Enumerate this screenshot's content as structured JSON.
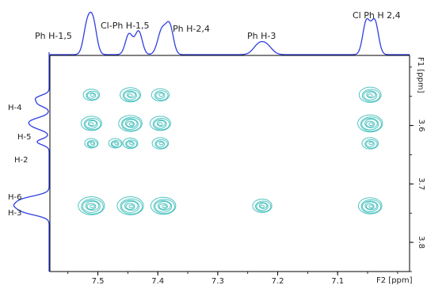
{
  "chart_data": {
    "type": "2D NMR contour plot (COSY) with projected 1D spectra",
    "x_axis": {
      "label": "F2 [ppm]",
      "range_ppm": [
        7.58,
        6.98
      ],
      "reversed": true,
      "tick_labels": [
        "7.5",
        "7.4",
        "7.3",
        "7.2",
        "7.1"
      ],
      "tick_values": [
        7.5,
        7.4,
        7.3,
        7.2,
        7.1
      ]
    },
    "y_axis": {
      "label": "F1 [ppm]",
      "range_ppm": [
        3.48,
        3.85
      ],
      "reversed": true,
      "tick_labels": [
        "3.6",
        "3.7",
        "3.8"
      ],
      "tick_values": [
        3.6,
        3.7,
        3.8
      ]
    },
    "top_projection_peaks": [
      {
        "label": "Ph H-1,5",
        "ppm": 7.51
      },
      {
        "label": "Cl-Ph H-1,5",
        "ppm": 7.435
      },
      {
        "label": "Ph H-2,4",
        "ppm": 7.385
      },
      {
        "label": "Ph H-3",
        "ppm": 7.225
      },
      {
        "label": "Cl Ph H 2,4",
        "ppm": 7.045
      }
    ],
    "left_projection_peaks": [
      {
        "label": "H-4",
        "ppm": 3.555
      },
      {
        "label": "H-5",
        "ppm": 3.595
      },
      {
        "label": "H-2",
        "ppm": 3.628
      },
      {
        "label": "H-6",
        "ppm": 3.728
      },
      {
        "label": "H-3",
        "ppm": 3.748
      }
    ],
    "cross_peaks": [
      {
        "f2": 7.51,
        "f1": 3.548,
        "size": 0.7
      },
      {
        "f2": 7.445,
        "f1": 3.548,
        "size": 1.0
      },
      {
        "f2": 7.395,
        "f1": 3.548,
        "size": 0.8
      },
      {
        "f2": 7.045,
        "f1": 3.548,
        "size": 1.1
      },
      {
        "f2": 7.51,
        "f1": 3.597,
        "size": 1.0
      },
      {
        "f2": 7.445,
        "f1": 3.597,
        "size": 1.2
      },
      {
        "f2": 7.395,
        "f1": 3.597,
        "size": 1.0
      },
      {
        "f2": 7.045,
        "f1": 3.597,
        "size": 1.3
      },
      {
        "f2": 7.51,
        "f1": 3.631,
        "size": 0.5
      },
      {
        "f2": 7.47,
        "f1": 3.631,
        "size": 0.5
      },
      {
        "f2": 7.445,
        "f1": 3.631,
        "size": 0.6
      },
      {
        "f2": 7.395,
        "f1": 3.631,
        "size": 0.7
      },
      {
        "f2": 7.045,
        "f1": 3.631,
        "size": 0.7
      },
      {
        "f2": 7.51,
        "f1": 3.738,
        "size": 1.4
      },
      {
        "f2": 7.445,
        "f1": 3.738,
        "size": 1.4
      },
      {
        "f2": 7.39,
        "f1": 3.738,
        "size": 1.3
      },
      {
        "f2": 7.225,
        "f1": 3.738,
        "size": 0.9
      },
      {
        "f2": 7.045,
        "f1": 3.738,
        "size": 1.2
      }
    ],
    "contour_color": "#4fc4c0",
    "projection_color": "#2f3fe0"
  }
}
